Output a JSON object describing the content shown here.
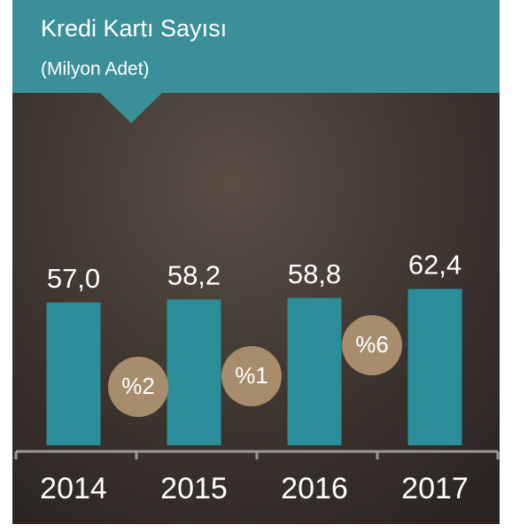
{
  "chart_data": {
    "type": "bar",
    "title": "Kredi Kartı Sayısı",
    "subtitle": "(Milyon Adet)",
    "categories": [
      "2014",
      "2015",
      "2016",
      "2017"
    ],
    "values": [
      57.0,
      58.2,
      58.8,
      62.4
    ],
    "value_labels": [
      "57,0",
      "58,2",
      "58,8",
      "62,4"
    ],
    "color": "#2b8d99",
    "annotations": [
      "%2",
      "%1",
      "%6"
    ]
  }
}
